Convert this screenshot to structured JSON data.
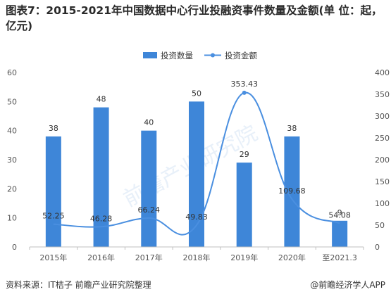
{
  "title": "图表7：2015-2021年中国数据中心行业投融资事件数量及金额(单 位：起，亿元)",
  "source": "资料来源：IT桔子 前瞻产业研究院整理",
  "credit": "@前瞻经济学人APP",
  "watermark": "前瞻产业研究院",
  "colors": {
    "bar": "#3e86d8",
    "line": "#4a8fe0",
    "axis": "#555555",
    "grid": "#e6e6e6"
  },
  "chart_data": {
    "type": "bar",
    "categories": [
      "2015年",
      "2016年",
      "2017年",
      "2018年",
      "2019年",
      "2020年",
      "至2021.3"
    ],
    "series": [
      {
        "name": "投资数量",
        "kind": "bar",
        "axis": "left",
        "values": [
          38,
          48,
          40,
          50,
          29,
          38,
          9
        ]
      },
      {
        "name": "投资金额",
        "kind": "line",
        "axis": "right",
        "values": [
          52.25,
          46.28,
          66.24,
          49.83,
          353.43,
          109.68,
          54.08
        ]
      }
    ],
    "left_axis": {
      "ticks": [
        0,
        10,
        20,
        30,
        40,
        50,
        60
      ],
      "ylim": [
        0,
        60
      ]
    },
    "right_axis": {
      "ticks": [
        0,
        50,
        100,
        150,
        200,
        250,
        300,
        350,
        400
      ],
      "ylim": [
        0,
        400
      ]
    },
    "legend": "top-right",
    "grid": false
  }
}
